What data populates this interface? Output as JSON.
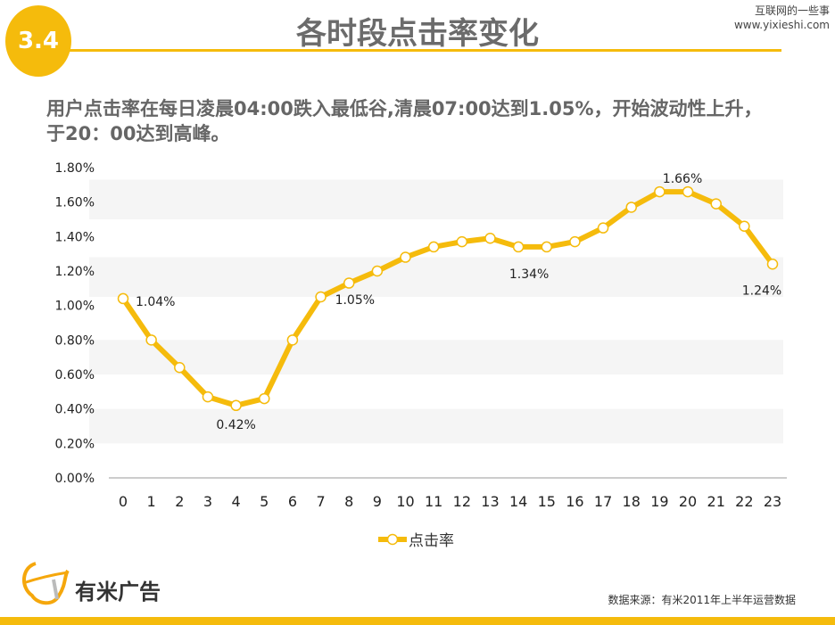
{
  "header": {
    "section_number": "3.4",
    "title": "各时段点击率变化",
    "watermark_line1": "互联网的一些事",
    "watermark_line2": "www.yixieshi.com"
  },
  "subtitle": "用户点击率在每日凌晨04:00跌入最低谷,清晨07:00达到1.05%，开始波动性上升，于20：00达到高峰。",
  "chart_data": {
    "type": "line",
    "categories": [
      "0",
      "1",
      "2",
      "3",
      "4",
      "5",
      "6",
      "7",
      "8",
      "9",
      "10",
      "11",
      "12",
      "13",
      "14",
      "15",
      "16",
      "17",
      "18",
      "19",
      "20",
      "21",
      "22",
      "23"
    ],
    "series": [
      {
        "name": "点击率",
        "color": "#f5bb0c",
        "values": [
          1.04,
          0.8,
          0.64,
          0.47,
          0.42,
          0.46,
          0.8,
          1.05,
          1.13,
          1.2,
          1.28,
          1.34,
          1.37,
          1.39,
          1.34,
          1.34,
          1.37,
          1.45,
          1.57,
          1.66,
          1.66,
          1.59,
          1.46,
          1.24
        ]
      }
    ],
    "data_labels": [
      {
        "index": 0,
        "text": "1.04%"
      },
      {
        "index": 4,
        "text": "0.42%"
      },
      {
        "index": 7,
        "text": "1.05%"
      },
      {
        "index": 14,
        "text": "1.34%"
      },
      {
        "index": 20,
        "text": "1.66%"
      },
      {
        "index": 23,
        "text": "1.24%"
      }
    ],
    "yticks": [
      "0.00%",
      "0.20%",
      "0.40%",
      "0.60%",
      "0.80%",
      "1.00%",
      "1.20%",
      "1.40%",
      "1.60%",
      "1.80%"
    ],
    "ylim": [
      0,
      1.8
    ],
    "legend": "bottom",
    "grid": false
  },
  "footer": {
    "logo_text": "有米广告",
    "source": "数据来源：有米2011年上半年运营数据"
  }
}
